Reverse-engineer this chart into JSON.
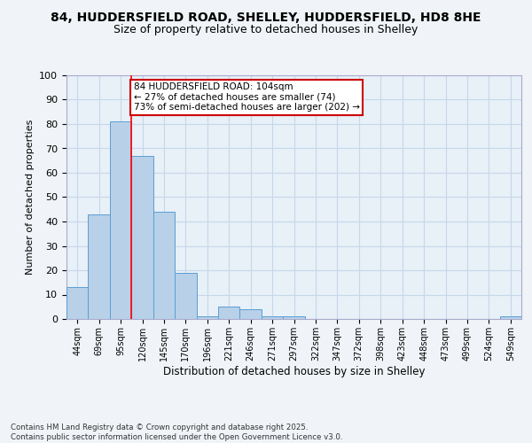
{
  "title1": "84, HUDDERSFIELD ROAD, SHELLEY, HUDDERSFIELD, HD8 8HE",
  "title2": "Size of property relative to detached houses in Shelley",
  "xlabel": "Distribution of detached houses by size in Shelley",
  "ylabel": "Number of detached properties",
  "bar_vals": [
    13,
    43,
    81,
    67,
    44,
    19,
    1,
    5,
    4,
    1,
    1,
    0,
    0,
    0,
    0,
    0,
    0,
    0,
    0,
    0,
    1
  ],
  "bar_labels": [
    "44sqm",
    "69sqm",
    "95sqm",
    "120sqm",
    "145sqm",
    "170sqm",
    "196sqm",
    "221sqm",
    "246sqm",
    "271sqm",
    "297sqm",
    "322sqm",
    "347sqm",
    "372sqm",
    "398sqm",
    "423sqm",
    "448sqm",
    "473sqm",
    "499sqm",
    "524sqm",
    "549sqm"
  ],
  "bar_color": "#b8d0e8",
  "bar_edge_color": "#5a9fd4",
  "grid_color": "#c5d8ea",
  "background_color": "#e8f0f8",
  "fig_background_color": "#f0f4f8",
  "redline_x": 2.5,
  "annotation_text": "84 HUDDERSFIELD ROAD: 104sqm\n← 27% of detached houses are smaller (74)\n73% of semi-detached houses are larger (202) →",
  "annotation_box_color": "#ffffff",
  "annotation_box_edge_color": "#cc0000",
  "ylim": [
    0,
    100
  ],
  "yticks": [
    0,
    10,
    20,
    30,
    40,
    50,
    60,
    70,
    80,
    90,
    100
  ],
  "footer": "Contains HM Land Registry data © Crown copyright and database right 2025.\nContains public sector information licensed under the Open Government Licence v3.0."
}
